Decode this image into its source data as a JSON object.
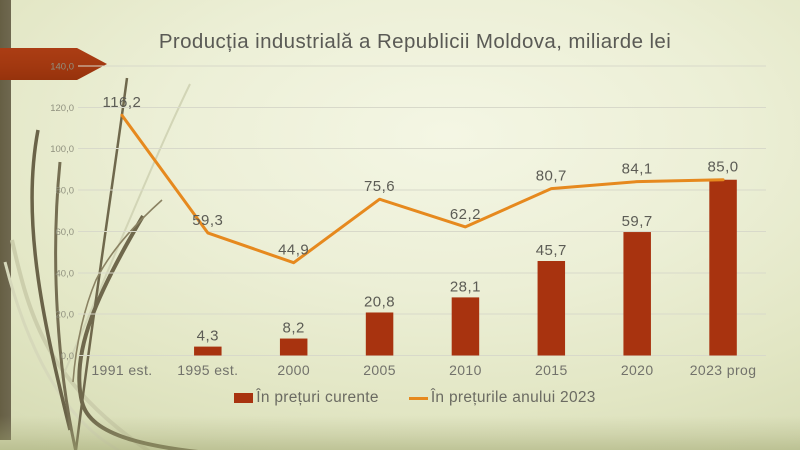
{
  "slide": {
    "title": "Producția industrială a Republicii Moldova, miliarde lei"
  },
  "chart_data": {
    "type": "combo",
    "title": "Producția industrială a Republicii Moldova, miliarde lei",
    "categories": [
      "1991 est.",
      "1995 est.",
      "2000",
      "2005",
      "2010",
      "2015",
      "2020",
      "2023 prog"
    ],
    "series": [
      {
        "name": "În prețuri curente",
        "type": "bar",
        "color": "#a8330f",
        "values": [
          null,
          4.3,
          8.2,
          20.8,
          28.1,
          45.7,
          59.7,
          85.0
        ],
        "labels": [
          "",
          "4,3",
          "8,2",
          "20,8",
          "28,1",
          "45,7",
          "59,7",
          ""
        ]
      },
      {
        "name": "În prețurile anului 2023",
        "type": "line",
        "color": "#e6891e",
        "values": [
          116.2,
          59.3,
          44.9,
          75.6,
          62.2,
          80.7,
          84.1,
          85.0
        ],
        "labels": [
          "116,2",
          "59,3",
          "44,9",
          "75,6",
          "62,2",
          "80,7",
          "84,1",
          "85,0"
        ]
      }
    ],
    "y_axis": {
      "min": 0,
      "max": 140,
      "step": 20,
      "tick_labels": [
        "0,0",
        "20,0",
        "40,0",
        "60,0",
        "80,0",
        "100,0",
        "120,0",
        "140,0"
      ]
    },
    "grid": true,
    "legend_position": "bottom",
    "xlabel": "",
    "ylabel": ""
  },
  "colors": {
    "bar": "#a8330f",
    "line": "#e6891e",
    "accent_arrow": "#a23810",
    "left_bar": "#6c6549",
    "gridline": "#d8d9ca",
    "title_text": "#5a5a55"
  }
}
